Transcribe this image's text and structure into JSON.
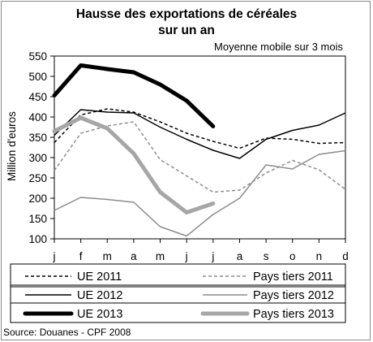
{
  "chart_data": {
    "type": "line",
    "title_line1": "Hausse des exportations de céréales",
    "title_line2": "sur un an",
    "subtitle": "Moyenne mobile sur 3 mois",
    "xlabel": "",
    "ylabel": "Million d'euros",
    "source": "Source: Douanes - CPF 2008",
    "categories": [
      "j",
      "f",
      "m",
      "a",
      "m",
      "j",
      "j",
      "a",
      "s",
      "o",
      "n",
      "d"
    ],
    "ylim": [
      100,
      550
    ],
    "yticks": [
      100,
      150,
      200,
      250,
      300,
      350,
      400,
      450,
      500,
      550
    ],
    "grid": false,
    "legend_placement": "bottom",
    "series": [
      {
        "name": "UE 2011",
        "color": "#000000",
        "style": "dashed",
        "weight": "thin",
        "values": [
          337,
          405,
          420,
          412,
          388,
          360,
          340,
          323,
          348,
          345,
          335,
          337
        ]
      },
      {
        "name": "Pays tiers 2011",
        "color": "#8c8c8c",
        "style": "dashed",
        "weight": "thin",
        "values": [
          268,
          360,
          378,
          388,
          295,
          255,
          215,
          220,
          262,
          293,
          270,
          222
        ]
      },
      {
        "name": "UE 2012",
        "color": "#000000",
        "style": "solid",
        "weight": "thin",
        "values": [
          355,
          418,
          412,
          410,
          375,
          345,
          318,
          298,
          345,
          367,
          380,
          410
        ]
      },
      {
        "name": "Pays tiers 2012",
        "color": "#8c8c8c",
        "style": "solid",
        "weight": "thin",
        "values": [
          170,
          202,
          197,
          190,
          130,
          107,
          160,
          200,
          282,
          272,
          308,
          317
        ]
      },
      {
        "name": "UE 2013",
        "color": "#000000",
        "style": "solid",
        "weight": "thick",
        "values": [
          453,
          527,
          518,
          510,
          480,
          440,
          377,
          null,
          null,
          null,
          null,
          null
        ]
      },
      {
        "name": "Pays tiers 2013",
        "color": "#a6a6a6",
        "style": "solid",
        "weight": "thick",
        "values": [
          365,
          398,
          372,
          310,
          215,
          165,
          187,
          null,
          null,
          null,
          null,
          null
        ]
      }
    ]
  }
}
